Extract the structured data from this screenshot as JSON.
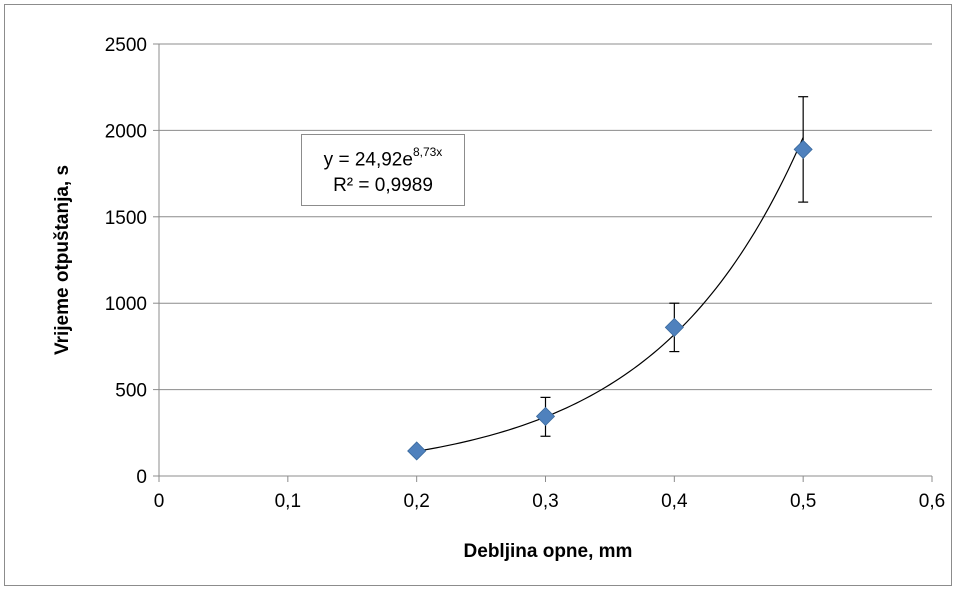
{
  "chart_data": {
    "type": "scatter",
    "title": "",
    "xlabel": "Debljina opne, mm",
    "ylabel": "Vrijeme otpuštanja, s",
    "xlim": [
      0,
      0.6
    ],
    "ylim": [
      0,
      2500
    ],
    "x_ticks": [
      "0",
      "0,1",
      "0,2",
      "0,3",
      "0,4",
      "0,5",
      "0,6"
    ],
    "y_ticks": [
      "0",
      "500",
      "1000",
      "1500",
      "2000",
      "2500"
    ],
    "x_tick_values": [
      0,
      0.1,
      0.2,
      0.3,
      0.4,
      0.5,
      0.6
    ],
    "y_tick_values": [
      0,
      500,
      1000,
      1500,
      2000,
      2500
    ],
    "grid": "horizontal",
    "legend": "none",
    "series": [
      {
        "marker": "diamond",
        "color": "#4f81bd",
        "points": [
          {
            "x": 0.2,
            "y": 145,
            "err_low": 145,
            "err_high": 145
          },
          {
            "x": 0.3,
            "y": 345,
            "err_low": 230,
            "err_high": 455
          },
          {
            "x": 0.4,
            "y": 860,
            "err_low": 720,
            "err_high": 1000
          },
          {
            "x": 0.5,
            "y": 1890,
            "err_low": 1585,
            "err_high": 2195
          }
        ]
      }
    ],
    "trendline": {
      "type": "exponential",
      "a": 24.92,
      "b": 8.73,
      "x_range": [
        0.2,
        0.5
      ],
      "color": "#000000"
    },
    "annotation": {
      "equation_prefix": "y = 24,92e",
      "equation_exponent": "8,73x",
      "r_squared": "R² = 0,9989"
    }
  }
}
